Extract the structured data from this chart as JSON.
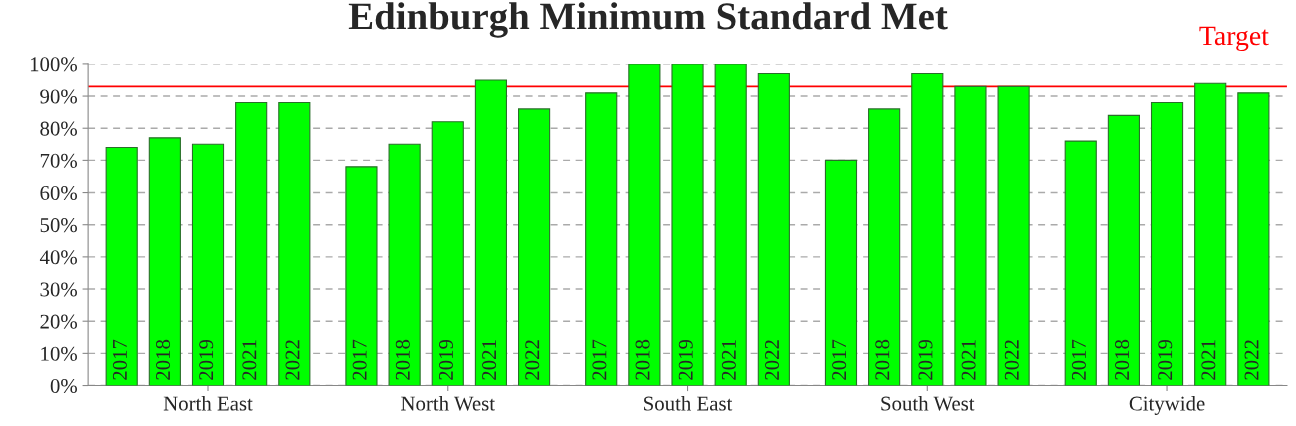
{
  "chart_data": {
    "type": "bar",
    "title": "Edinburgh Minimum Standard Met",
    "categories": [
      "North East",
      "North West",
      "South East",
      "South West",
      "Citywide"
    ],
    "series": [
      {
        "name": "2017",
        "color": "#00ff00",
        "values": [
          74,
          68,
          91,
          70,
          76
        ]
      },
      {
        "name": "2018",
        "color": "#00ff00",
        "values": [
          77,
          75,
          100,
          86,
          84
        ]
      },
      {
        "name": "2019",
        "color": "#00ff00",
        "values": [
          75,
          82,
          100,
          97,
          88
        ]
      },
      {
        "name": "2021",
        "color": "#00ff00",
        "values": [
          88,
          95,
          100,
          93,
          94
        ]
      },
      {
        "name": "2022",
        "color": "#00ff00",
        "values": [
          88,
          86,
          97,
          93,
          91
        ]
      }
    ],
    "ylim": [
      0,
      100
    ],
    "yticks": [
      {
        "value": 0,
        "label": "0%"
      },
      {
        "value": 10,
        "label": "10%"
      },
      {
        "value": 20,
        "label": "20%"
      },
      {
        "value": 30,
        "label": "30%"
      },
      {
        "value": 40,
        "label": "40%"
      },
      {
        "value": 50,
        "label": "50%"
      },
      {
        "value": 60,
        "label": "60%"
      },
      {
        "value": 70,
        "label": "70%"
      },
      {
        "value": 80,
        "label": "80%"
      },
      {
        "value": 90,
        "label": "90%"
      },
      {
        "value": 100,
        "label": "100%"
      }
    ],
    "ref_lines": [
      {
        "axis": "y",
        "value": 93,
        "label": "Target",
        "color": "#ff0000"
      }
    ],
    "grid": "y",
    "legend": false
  }
}
